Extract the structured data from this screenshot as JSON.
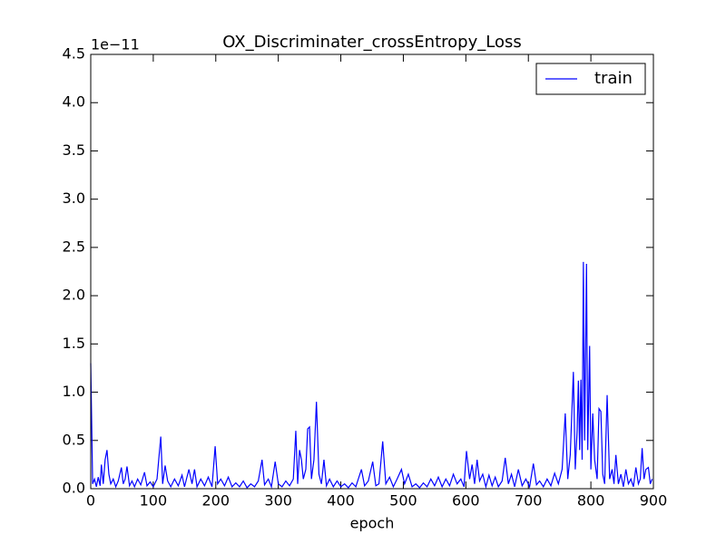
{
  "chart_data": {
    "type": "line",
    "title": "OX_Discriminater_crossEntropy_Loss",
    "x_label": "epoch",
    "y_offset_label": "1e−11",
    "x": [
      0,
      3,
      6,
      9,
      12,
      15,
      17,
      20,
      23,
      26,
      29,
      32,
      36,
      40,
      44,
      49,
      52,
      55,
      58,
      62,
      66,
      70,
      75,
      80,
      86,
      90,
      95,
      100,
      106,
      112,
      115,
      119,
      123,
      128,
      134,
      140,
      146,
      150,
      157,
      162,
      166,
      170,
      176,
      182,
      188,
      194,
      199,
      203,
      208,
      214,
      220,
      226,
      232,
      238,
      244,
      250,
      256,
      262,
      268,
      274,
      278,
      284,
      289,
      295,
      300,
      306,
      312,
      318,
      324,
      328,
      331,
      334,
      337,
      340,
      344,
      347,
      350,
      353,
      357,
      361,
      365,
      369,
      373,
      377,
      382,
      388,
      394,
      400,
      406,
      412,
      418,
      424,
      428,
      433,
      438,
      444,
      451,
      456,
      461,
      467,
      472,
      478,
      484,
      490,
      497,
      502,
      508,
      514,
      520,
      526,
      532,
      538,
      544,
      550,
      556,
      562,
      568,
      574,
      580,
      586,
      592,
      597,
      601,
      606,
      610,
      614,
      618,
      622,
      627,
      632,
      637,
      642,
      647,
      652,
      658,
      663,
      668,
      673,
      678,
      684,
      690,
      696,
      702,
      708,
      713,
      718,
      724,
      730,
      736,
      742,
      748,
      754,
      759,
      763,
      767,
      772,
      775,
      778,
      780,
      782,
      784,
      786,
      788,
      790,
      793,
      795,
      798,
      800,
      803,
      806,
      810,
      813,
      816,
      819,
      822,
      826,
      830,
      834,
      837,
      840,
      844,
      848,
      852,
      856,
      860,
      864,
      868,
      872,
      876,
      879,
      882,
      885,
      888,
      892,
      895,
      898
    ],
    "series": [
      {
        "name": "train",
        "color": "#0000ff",
        "values": [
          1.3,
          0.05,
          0.1,
          0.02,
          0.12,
          0.03,
          0.25,
          0.05,
          0.3,
          0.4,
          0.15,
          0.05,
          0.1,
          0.02,
          0.08,
          0.22,
          0.05,
          0.1,
          0.23,
          0.03,
          0.08,
          0.02,
          0.1,
          0.04,
          0.17,
          0.03,
          0.07,
          0.02,
          0.1,
          0.54,
          0.05,
          0.24,
          0.08,
          0.02,
          0.1,
          0.03,
          0.14,
          0.02,
          0.2,
          0.05,
          0.2,
          0.02,
          0.1,
          0.03,
          0.12,
          0.02,
          0.44,
          0.05,
          0.1,
          0.03,
          0.12,
          0.02,
          0.06,
          0.02,
          0.08,
          0.01,
          0.05,
          0.02,
          0.08,
          0.3,
          0.04,
          0.1,
          0.02,
          0.28,
          0.05,
          0.02,
          0.08,
          0.03,
          0.1,
          0.6,
          0.05,
          0.4,
          0.3,
          0.1,
          0.2,
          0.62,
          0.64,
          0.1,
          0.3,
          0.9,
          0.15,
          0.05,
          0.3,
          0.03,
          0.1,
          0.02,
          0.08,
          0.02,
          0.05,
          0.01,
          0.06,
          0.02,
          0.1,
          0.2,
          0.03,
          0.08,
          0.28,
          0.03,
          0.05,
          0.49,
          0.05,
          0.12,
          0.02,
          0.1,
          0.2,
          0.05,
          0.15,
          0.02,
          0.05,
          0.01,
          0.06,
          0.02,
          0.1,
          0.03,
          0.12,
          0.02,
          0.1,
          0.03,
          0.15,
          0.05,
          0.1,
          0.02,
          0.39,
          0.1,
          0.25,
          0.05,
          0.3,
          0.08,
          0.15,
          0.02,
          0.14,
          0.03,
          0.12,
          0.02,
          0.08,
          0.32,
          0.05,
          0.15,
          0.02,
          0.2,
          0.03,
          0.1,
          0.02,
          0.26,
          0.04,
          0.08,
          0.02,
          0.1,
          0.03,
          0.16,
          0.05,
          0.2,
          0.78,
          0.1,
          0.35,
          1.21,
          0.2,
          0.6,
          1.12,
          0.4,
          1.13,
          0.3,
          2.35,
          0.5,
          2.33,
          0.4,
          1.48,
          0.2,
          0.78,
          0.3,
          0.1,
          0.83,
          0.8,
          0.15,
          0.05,
          0.97,
          0.1,
          0.2,
          0.05,
          0.35,
          0.05,
          0.15,
          0.02,
          0.2,
          0.05,
          0.1,
          0.02,
          0.22,
          0.05,
          0.1,
          0.42,
          0.1,
          0.2,
          0.22,
          0.05,
          0.1
        ]
      }
    ],
    "xlim": [
      0,
      900
    ],
    "xticks": [
      0,
      100,
      200,
      300,
      400,
      500,
      600,
      700,
      800,
      900
    ],
    "ylim": [
      0,
      4.5
    ],
    "yticks": [
      {
        "value": 0,
        "label": "0.0"
      },
      0.5,
      {
        "value": 1,
        "label": "1.0"
      },
      1.5,
      {
        "value": 2,
        "label": "2.0"
      },
      2.5,
      {
        "value": 3,
        "label": "3.0"
      },
      3.5,
      {
        "value": 4,
        "label": "4.0"
      },
      4.5
    ],
    "grid": false,
    "legend": "upper right"
  }
}
